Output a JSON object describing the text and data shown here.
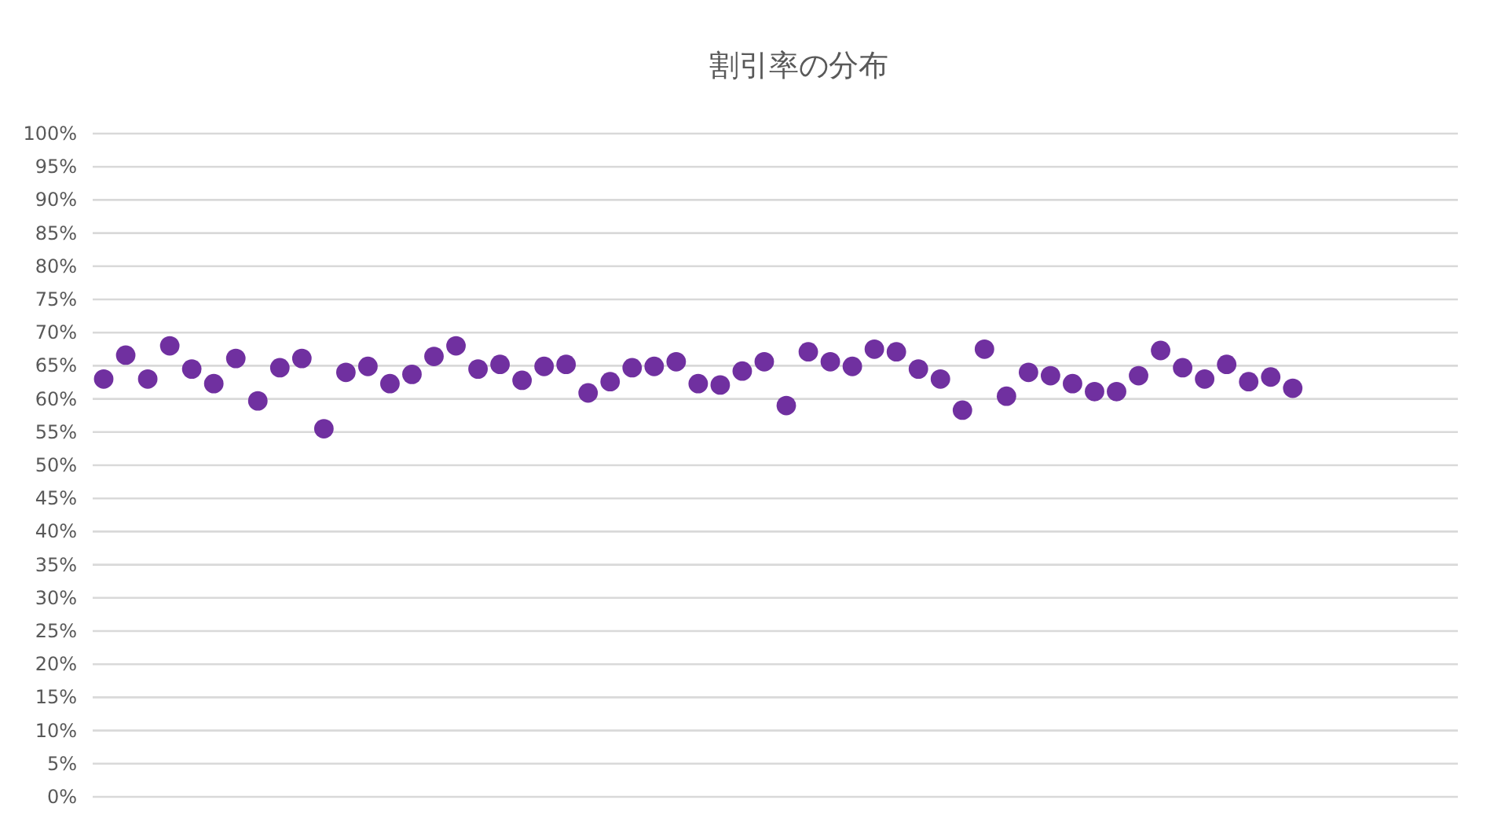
{
  "chart_data": {
    "type": "scatter",
    "title": "割引率の分布",
    "categories": [
      null,
      null,
      null,
      null,
      null,
      null,
      null,
      null,
      null,
      null,
      null,
      null,
      null,
      null,
      null,
      null,
      null,
      null,
      null,
      null,
      null,
      null,
      null,
      null,
      null,
      null,
      null,
      null,
      null,
      null,
      null,
      null,
      null,
      null,
      null,
      null,
      null,
      null,
      null,
      null,
      null,
      null,
      null,
      null,
      null,
      null,
      null,
      null,
      null,
      null,
      null,
      null,
      null,
      null,
      null,
      null,
      null,
      null,
      null,
      null,
      null,
      null
    ],
    "values": [
      63.0,
      66.6,
      63.0,
      68.0,
      64.5,
      62.3,
      66.1,
      59.7,
      64.7,
      66.1,
      55.5,
      64.0,
      64.9,
      62.3,
      63.7,
      66.4,
      68.0,
      64.5,
      65.2,
      62.8,
      64.9,
      65.2,
      60.9,
      62.6,
      64.7,
      64.9,
      65.6,
      62.3,
      62.1,
      64.2,
      65.6,
      59.0,
      67.1,
      65.6,
      64.9,
      67.5,
      67.1,
      64.5,
      63.0,
      58.3,
      67.5,
      60.4,
      64.0,
      63.5,
      62.3,
      61.1,
      61.1,
      63.5,
      67.3,
      64.7,
      63.0,
      65.2,
      62.6,
      63.3,
      61.6,
      null,
      null,
      null,
      null,
      null,
      null,
      null
    ],
    "color": "#7030a0",
    "marker": "circle",
    "grid": "y",
    "tick_labels": "y",
    "ylim": [
      0,
      100
    ],
    "yticks": [
      {
        "value": 0,
        "label": "0%"
      },
      {
        "value": 5,
        "label": "5%"
      },
      {
        "value": 10,
        "label": "10%"
      },
      {
        "value": 15,
        "label": "15%"
      },
      {
        "value": 20,
        "label": "20%"
      },
      {
        "value": 25,
        "label": "25%"
      },
      {
        "value": 30,
        "label": "30%"
      },
      {
        "value": 35,
        "label": "35%"
      },
      {
        "value": 40,
        "label": "40%"
      },
      {
        "value": 45,
        "label": "45%"
      },
      {
        "value": 50,
        "label": "50%"
      },
      {
        "value": 55,
        "label": "55%"
      },
      {
        "value": 60,
        "label": "60%"
      },
      {
        "value": 65,
        "label": "65%"
      },
      {
        "value": 70,
        "label": "70%"
      },
      {
        "value": 75,
        "label": "75%"
      },
      {
        "value": 80,
        "label": "80%"
      },
      {
        "value": 85,
        "label": "85%"
      },
      {
        "value": 90,
        "label": "90%"
      },
      {
        "value": 95,
        "label": "95%"
      },
      {
        "value": 100,
        "label": "100%"
      }
    ]
  }
}
